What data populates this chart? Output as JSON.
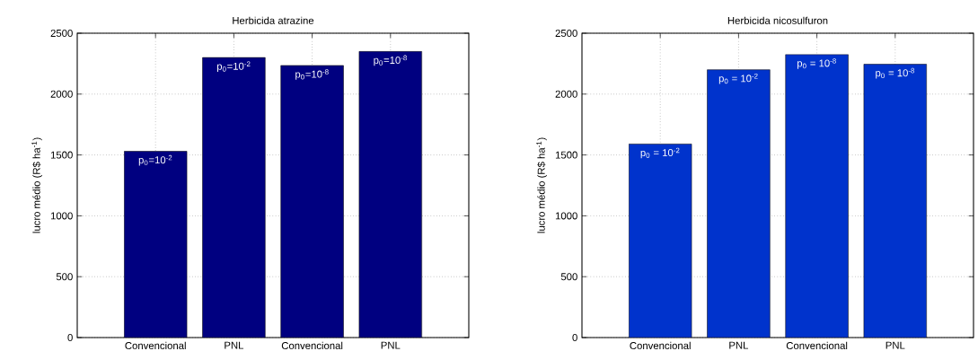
{
  "chart_data": [
    {
      "type": "bar",
      "title": "Herbicida atrazine",
      "ylabel": "lucro médio (R$ ha$^{-1}$)",
      "categories": [
        "Convencional",
        "PNL",
        "Convencional",
        "PNL"
      ],
      "values": [
        1530,
        2300,
        2235,
        2350
      ],
      "color": "#000080",
      "ylim": [
        0,
        2500
      ],
      "yticks": [
        0,
        500,
        1000,
        1500,
        2000,
        2500
      ],
      "grid": true,
      "value_labels": [
        "p$_{0}$=10$^{-2}$",
        "p$_{0}$=10$^{-2}$",
        "p$_{0}$=10$^{-8}$",
        "p$_{0}$=10$^{-8}$"
      ]
    },
    {
      "type": "bar",
      "title": "Herbicida nicosulfuron",
      "ylabel": "lucro médio (R$ ha$^{-1}$)",
      "categories": [
        "Convencional",
        "PNL",
        "Convencional",
        "PNL"
      ],
      "values": [
        1590,
        2200,
        2325,
        2245
      ],
      "color": "#0033cc",
      "ylim": [
        0,
        2500
      ],
      "yticks": [
        0,
        500,
        1000,
        1500,
        2000,
        2500
      ],
      "grid": true,
      "value_labels": [
        "p$_{0}$ = 10$^{-2}$",
        "p$_{0}$ = 10$^{-2}$",
        "p$_{0}$ = 10$^{-8}$",
        "p$_{0}$ = 10$^{-8}$"
      ]
    }
  ]
}
